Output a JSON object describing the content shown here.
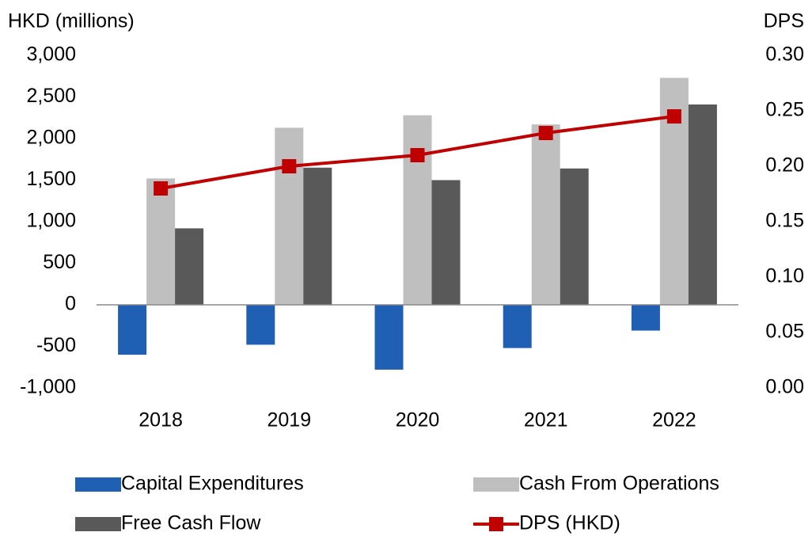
{
  "chart_data": {
    "type": "bar",
    "y_label": "HKD (millions)",
    "y2_label": "DPS",
    "categories": [
      "2018",
      "2019",
      "2020",
      "2021",
      "2022"
    ],
    "series": [
      {
        "name": "Capital Expenditures",
        "color": "#1f5fb4",
        "values": [
          -600,
          -480,
          -780,
          -520,
          -310
        ]
      },
      {
        "name": "Cash From Operations",
        "color": "#bfbfbf",
        "values": [
          1520,
          2130,
          2280,
          2170,
          2730
        ]
      },
      {
        "name": "Free Cash Flow",
        "color": "#595959",
        "values": [
          920,
          1650,
          1500,
          1640,
          2410
        ]
      },
      {
        "name": "DPS (HKD)",
        "color": "#c00000",
        "type": "line",
        "axis": "y2",
        "values": [
          0.18,
          0.2,
          0.21,
          0.23,
          0.245
        ]
      }
    ],
    "ylim": [
      -1000,
      3000
    ],
    "yticks": [
      {
        "value": -1000,
        "label": "-1,000"
      },
      -500,
      0,
      500,
      {
        "value": 1000,
        "label": "1,000"
      },
      {
        "value": 1500,
        "label": "1,500"
      },
      {
        "value": 2000,
        "label": "2,000"
      },
      {
        "value": 2500,
        "label": "2,500"
      },
      {
        "value": 3000,
        "label": "3,000"
      }
    ],
    "y2lim": [
      0,
      0.3
    ],
    "y2ticks": [
      {
        "value": 0,
        "label": "0.00"
      },
      {
        "value": 0.05,
        "label": "0.05"
      },
      {
        "value": 0.1,
        "label": "0.10"
      },
      {
        "value": 0.15,
        "label": "0.15"
      },
      {
        "value": 0.2,
        "label": "0.20"
      },
      {
        "value": 0.25,
        "label": "0.25"
      },
      {
        "value": 0.3,
        "label": "0.30"
      }
    ],
    "legend": "bottom"
  }
}
